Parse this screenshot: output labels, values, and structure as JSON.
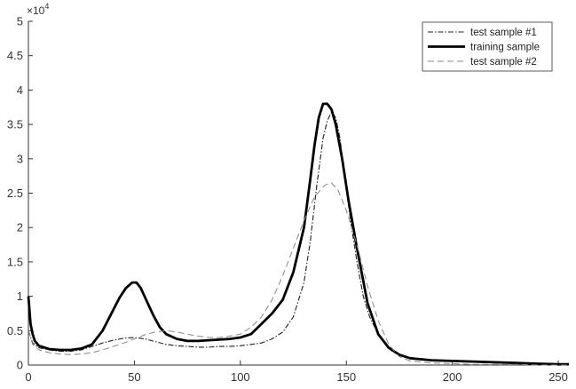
{
  "chart_data": {
    "type": "line",
    "title": "",
    "xlabel": "",
    "ylabel": "",
    "xlim": [
      0,
      255
    ],
    "ylim": [
      0,
      5
    ],
    "y_multiplier": "×10⁴",
    "y_multiplier_base": "×10",
    "y_multiplier_exp": "4",
    "grid": false,
    "legend_position": "top-right",
    "x_ticks": [
      0,
      50,
      100,
      150,
      200,
      250
    ],
    "x_tick_labels": [
      "0",
      "50",
      "100",
      "150",
      "200",
      "250"
    ],
    "y_ticks": [
      0,
      0.5,
      1,
      1.5,
      2,
      2.5,
      3,
      3.5,
      4,
      4.5,
      5
    ],
    "y_tick_labels": [
      "0",
      "0.5",
      "1",
      "1.5",
      "2",
      "2.5",
      "3",
      "3.5",
      "4",
      "4.5",
      "5"
    ],
    "series": [
      {
        "name": "test sample #1",
        "color": "#222222",
        "style": "dash-dot",
        "x": [
          0,
          2,
          5,
          10,
          15,
          20,
          25,
          30,
          35,
          40,
          45,
          50,
          55,
          60,
          65,
          70,
          75,
          80,
          85,
          90,
          95,
          100,
          105,
          110,
          115,
          120,
          125,
          130,
          133,
          136,
          139,
          141,
          143,
          145,
          147,
          149,
          152,
          155,
          158,
          161,
          165,
          170,
          175,
          180,
          190,
          200,
          210,
          220,
          230,
          240,
          250,
          255
        ],
        "y": [
          0.5,
          0.32,
          0.25,
          0.22,
          0.2,
          0.2,
          0.22,
          0.27,
          0.32,
          0.36,
          0.39,
          0.4,
          0.38,
          0.34,
          0.3,
          0.28,
          0.27,
          0.26,
          0.26,
          0.27,
          0.27,
          0.28,
          0.3,
          0.32,
          0.38,
          0.48,
          0.7,
          1.2,
          1.8,
          2.6,
          3.3,
          3.55,
          3.68,
          3.6,
          3.3,
          2.8,
          2.1,
          1.5,
          1.0,
          0.7,
          0.45,
          0.25,
          0.15,
          0.1,
          0.07,
          0.05,
          0.04,
          0.03,
          0.02,
          0.01,
          0.01,
          0.01
        ]
      },
      {
        "name": "training sample",
        "color": "#000000",
        "style": "solid",
        "x": [
          0,
          1,
          2,
          3,
          5,
          8,
          10,
          15,
          20,
          25,
          30,
          35,
          40,
          43,
          46,
          49,
          51,
          53,
          56,
          59,
          62,
          65,
          70,
          75,
          80,
          85,
          90,
          95,
          100,
          105,
          110,
          115,
          120,
          125,
          130,
          133,
          135,
          137,
          139,
          141,
          143,
          145,
          148,
          151,
          155,
          160,
          165,
          170,
          175,
          180,
          190,
          200,
          210,
          220,
          230,
          240,
          250,
          255
        ],
        "y": [
          1.0,
          0.6,
          0.45,
          0.35,
          0.28,
          0.25,
          0.23,
          0.22,
          0.22,
          0.24,
          0.3,
          0.5,
          0.8,
          0.98,
          1.12,
          1.2,
          1.2,
          1.12,
          0.92,
          0.72,
          0.55,
          0.45,
          0.38,
          0.35,
          0.35,
          0.36,
          0.37,
          0.38,
          0.4,
          0.45,
          0.6,
          0.75,
          0.95,
          1.35,
          2.0,
          2.7,
          3.2,
          3.6,
          3.8,
          3.8,
          3.72,
          3.5,
          3.0,
          2.4,
          1.7,
          0.9,
          0.45,
          0.25,
          0.15,
          0.1,
          0.07,
          0.06,
          0.05,
          0.04,
          0.03,
          0.02,
          0.01,
          0.01
        ]
      },
      {
        "name": "test sample #2",
        "color": "#888888",
        "style": "dashed",
        "x": [
          0,
          2,
          5,
          10,
          15,
          20,
          25,
          30,
          35,
          40,
          45,
          50,
          55,
          60,
          65,
          70,
          75,
          80,
          85,
          90,
          95,
          100,
          105,
          110,
          115,
          120,
          125,
          130,
          135,
          140,
          143,
          146,
          150,
          155,
          160,
          165,
          170,
          175,
          180,
          190,
          200,
          210,
          220,
          230,
          240,
          250,
          255
        ],
        "y": [
          0.5,
          0.3,
          0.22,
          0.18,
          0.16,
          0.15,
          0.16,
          0.18,
          0.22,
          0.27,
          0.32,
          0.38,
          0.44,
          0.48,
          0.5,
          0.48,
          0.45,
          0.42,
          0.4,
          0.4,
          0.42,
          0.45,
          0.55,
          0.7,
          0.95,
          1.3,
          1.7,
          2.1,
          2.45,
          2.62,
          2.65,
          2.55,
          2.25,
          1.75,
          1.15,
          0.65,
          0.3,
          0.12,
          0.06,
          0.03,
          0.02,
          0.01,
          0.01,
          0.01,
          0.0,
          0.0,
          0.0
        ]
      }
    ]
  }
}
